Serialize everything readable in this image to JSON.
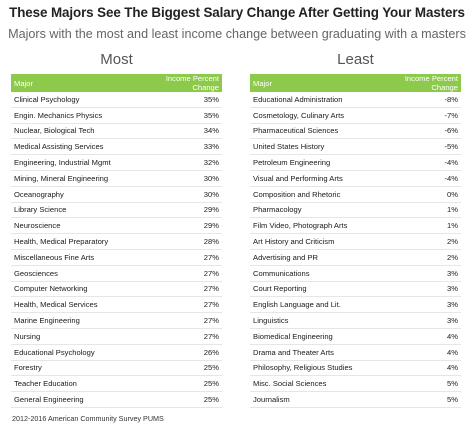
{
  "title": "These Majors See The Biggest Salary Change After Getting Your Masters",
  "subtitle": "Majors with the most and least income change between graduating with a masters",
  "footer": "2012-2016 American Community Survey PUMS",
  "colors": {
    "header_green": "#8dc94b",
    "row_divider": "#e6e6e6"
  },
  "chart_data": [
    {
      "type": "table",
      "title": "Most",
      "columns": [
        "Major",
        "Income Percent Change"
      ],
      "rows": [
        [
          "Clinical Psychology",
          "35%"
        ],
        [
          "Engin. Mechanics Physics",
          "35%"
        ],
        [
          "Nuclear, Biological Tech",
          "34%"
        ],
        [
          "Medical Assisting Services",
          "33%"
        ],
        [
          "Engineering, Industrial Mgmt",
          "32%"
        ],
        [
          "Mining, Mineral Engineering",
          "30%"
        ],
        [
          "Oceanography",
          "30%"
        ],
        [
          "Library Science",
          "29%"
        ],
        [
          "Neuroscience",
          "29%"
        ],
        [
          "Health, Medical Preparatory",
          "28%"
        ],
        [
          "Miscellaneous Fine Arts",
          "27%"
        ],
        [
          "Geosciences",
          "27%"
        ],
        [
          "Computer Networking",
          "27%"
        ],
        [
          "Health, Medical Services",
          "27%"
        ],
        [
          "Marine Engineering",
          "27%"
        ],
        [
          "Nursing",
          "27%"
        ],
        [
          "Educational Psychology",
          "26%"
        ],
        [
          "Forestry",
          "25%"
        ],
        [
          "Teacher Education",
          "25%"
        ],
        [
          "General Engineering",
          "25%"
        ]
      ]
    },
    {
      "type": "table",
      "title": "Least",
      "columns": [
        "Major",
        "Income Percent Change"
      ],
      "rows": [
        [
          "Educational Administration",
          "-8%"
        ],
        [
          "Cosmetology, Culinary Arts",
          "-7%"
        ],
        [
          "Pharmaceutical Sciences",
          "-6%"
        ],
        [
          "United States History",
          "-5%"
        ],
        [
          "Petroleum Engineering",
          "-4%"
        ],
        [
          "Visual and Performing Arts",
          "-4%"
        ],
        [
          "Composition and Rhetoric",
          "0%"
        ],
        [
          "Pharmacology",
          "1%"
        ],
        [
          "Film Video, Photograph Arts",
          "1%"
        ],
        [
          "Art History and Criticism",
          "2%"
        ],
        [
          "Advertising and PR",
          "2%"
        ],
        [
          "Communications",
          "3%"
        ],
        [
          "Court Reporting",
          "3%"
        ],
        [
          "English Language and Lit.",
          "3%"
        ],
        [
          "Linguistics",
          "3%"
        ],
        [
          "Biomedical Engineering",
          "4%"
        ],
        [
          "Drama and Theater Arts",
          "4%"
        ],
        [
          "Philosophy, Religious Studies",
          "4%"
        ],
        [
          "Misc. Social Sciences",
          "5%"
        ],
        [
          "Journalism",
          "5%"
        ]
      ]
    }
  ]
}
